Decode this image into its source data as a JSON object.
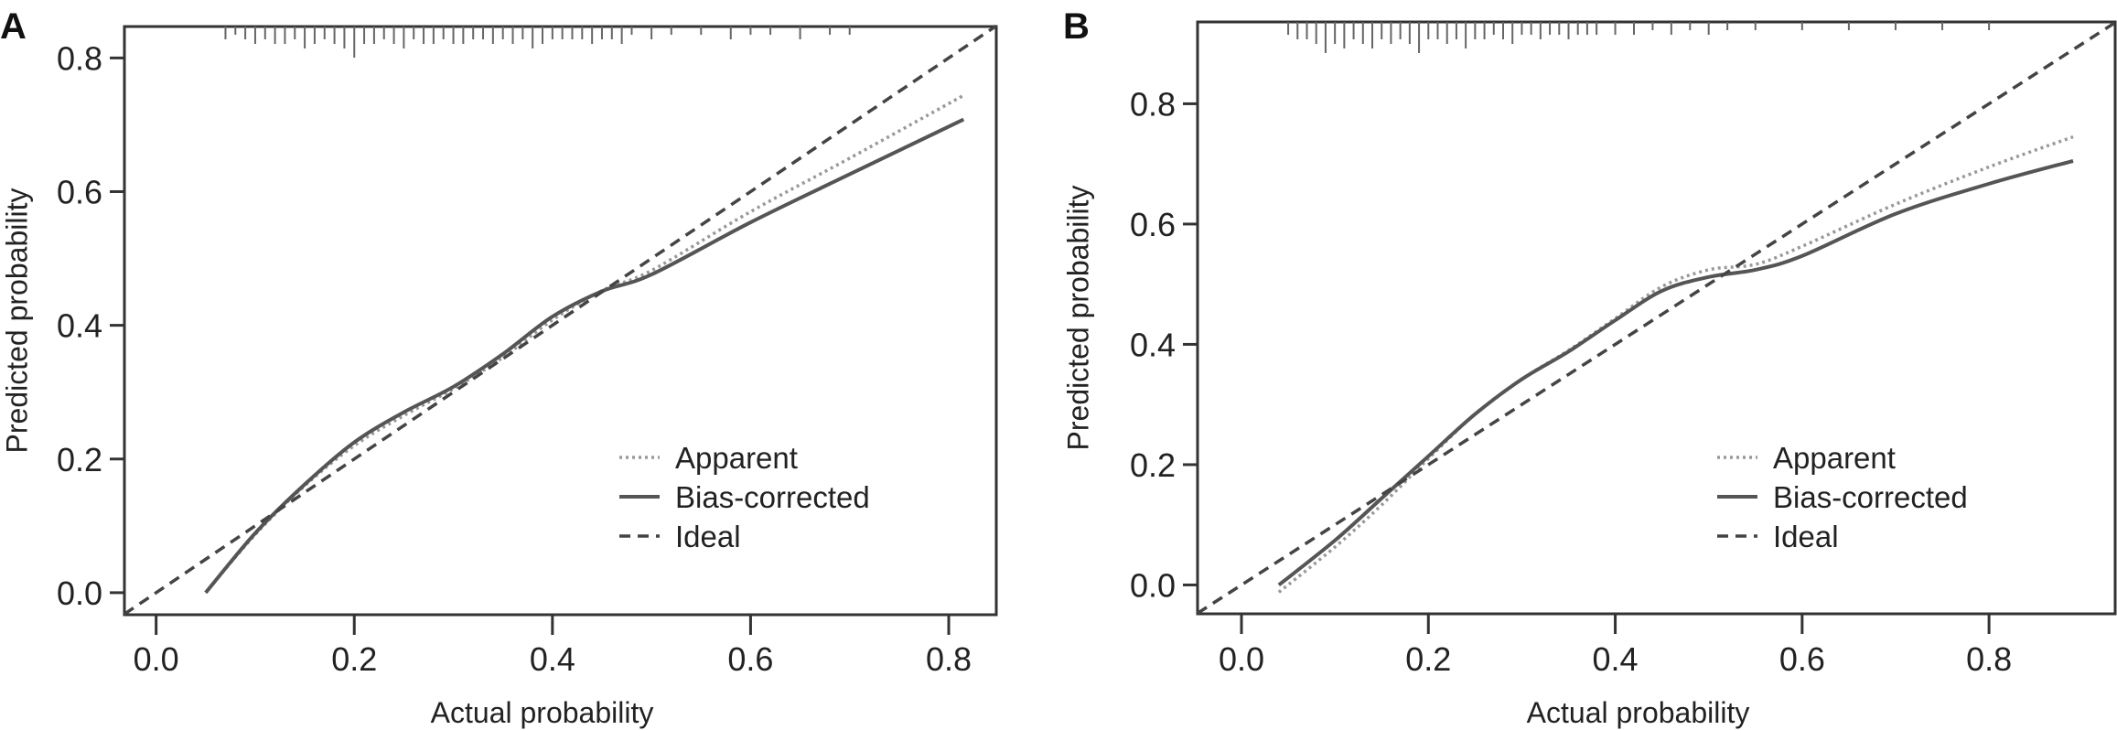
{
  "chart_data": [
    {
      "type": "line",
      "panel_label": "A",
      "xlabel": "Actual probability",
      "ylabel": "Predicted probability",
      "xlim": [
        -0.032,
        0.848
      ],
      "ylim": [
        -0.033,
        0.847
      ],
      "xticks": [
        "0.0",
        "0.2",
        "0.4",
        "0.6",
        "0.8"
      ],
      "yticks": [
        "0.0",
        "0.2",
        "0.4",
        "0.6",
        "0.8"
      ],
      "grid": false,
      "legend_position": "bottom-right",
      "series": [
        {
          "name": "Apparent",
          "style": "dotted",
          "color": "#999999",
          "x": [
            0.05,
            0.1,
            0.15,
            0.2,
            0.25,
            0.3,
            0.35,
            0.4,
            0.45,
            0.5,
            0.6,
            0.7,
            0.815
          ],
          "y": [
            0.0,
            0.087,
            0.16,
            0.22,
            0.265,
            0.305,
            0.352,
            0.408,
            0.452,
            0.482,
            0.57,
            0.65,
            0.744
          ]
        },
        {
          "name": "Bias-corrected",
          "style": "solid",
          "color": "#555555",
          "x": [
            0.05,
            0.1,
            0.15,
            0.2,
            0.25,
            0.3,
            0.35,
            0.4,
            0.45,
            0.5,
            0.6,
            0.7,
            0.815
          ],
          "y": [
            0.0,
            0.089,
            0.162,
            0.225,
            0.27,
            0.308,
            0.357,
            0.413,
            0.451,
            0.476,
            0.554,
            0.626,
            0.708
          ]
        },
        {
          "name": "Ideal",
          "style": "dashed",
          "color": "#444444",
          "x": [
            -0.032,
            0.848
          ],
          "y": [
            -0.032,
            0.848
          ]
        }
      ],
      "rug": [
        0.07,
        0.08,
        0.09,
        0.1,
        0.11,
        0.12,
        0.13,
        0.14,
        0.15,
        0.16,
        0.17,
        0.18,
        0.19,
        0.2,
        0.21,
        0.22,
        0.23,
        0.24,
        0.25,
        0.26,
        0.27,
        0.28,
        0.29,
        0.3,
        0.31,
        0.32,
        0.33,
        0.34,
        0.35,
        0.36,
        0.37,
        0.38,
        0.39,
        0.4,
        0.41,
        0.42,
        0.43,
        0.44,
        0.45,
        0.46,
        0.47,
        0.48,
        0.5,
        0.52,
        0.55,
        0.58,
        0.6,
        0.62,
        0.65,
        0.68,
        0.7
      ],
      "rug_counts": [
        2,
        1,
        2,
        3,
        2,
        3,
        3,
        2,
        4,
        3,
        2,
        3,
        4,
        6,
        3,
        3,
        2,
        3,
        4,
        2,
        3,
        3,
        2,
        3,
        3,
        2,
        2,
        3,
        2,
        3,
        2,
        4,
        3,
        2,
        2,
        2,
        2,
        3,
        2,
        2,
        3,
        1,
        2,
        1,
        1,
        2,
        1,
        1,
        2,
        1,
        1
      ]
    },
    {
      "type": "line",
      "panel_label": "B",
      "xlabel": "Actual probability",
      "ylabel": "Predicted probability",
      "xlim": [
        -0.047,
        0.935
      ],
      "ylim": [
        -0.048,
        0.936
      ],
      "xticks": [
        "0.0",
        "0.2",
        "0.4",
        "0.6",
        "0.8"
      ],
      "yticks": [
        "0.0",
        "0.2",
        "0.4",
        "0.6",
        "0.8"
      ],
      "grid": false,
      "legend_position": "bottom-right",
      "series": [
        {
          "name": "Apparent",
          "style": "dotted",
          "color": "#999999",
          "x": [
            0.04,
            0.1,
            0.15,
            0.2,
            0.25,
            0.3,
            0.35,
            0.4,
            0.45,
            0.5,
            0.55,
            0.6,
            0.7,
            0.8,
            0.89
          ],
          "y": [
            -0.012,
            0.063,
            0.133,
            0.21,
            0.284,
            0.342,
            0.39,
            0.443,
            0.496,
            0.524,
            0.533,
            0.563,
            0.633,
            0.695,
            0.745
          ]
        },
        {
          "name": "Bias-corrected",
          "style": "solid",
          "color": "#555555",
          "x": [
            0.04,
            0.1,
            0.15,
            0.2,
            0.25,
            0.3,
            0.35,
            0.4,
            0.45,
            0.5,
            0.55,
            0.6,
            0.7,
            0.8,
            0.89
          ],
          "y": [
            0.0,
            0.074,
            0.144,
            0.214,
            0.284,
            0.342,
            0.388,
            0.44,
            0.489,
            0.512,
            0.524,
            0.547,
            0.617,
            0.667,
            0.705
          ]
        },
        {
          "name": "Ideal",
          "style": "dashed",
          "color": "#444444",
          "x": [
            -0.047,
            0.935
          ],
          "y": [
            -0.047,
            0.935
          ]
        }
      ],
      "rug": [
        0.05,
        0.06,
        0.07,
        0.08,
        0.09,
        0.1,
        0.11,
        0.12,
        0.13,
        0.14,
        0.15,
        0.16,
        0.17,
        0.18,
        0.19,
        0.2,
        0.21,
        0.22,
        0.23,
        0.24,
        0.25,
        0.26,
        0.27,
        0.28,
        0.29,
        0.3,
        0.31,
        0.32,
        0.33,
        0.34,
        0.35,
        0.36,
        0.37,
        0.38,
        0.4,
        0.42,
        0.44,
        0.46,
        0.48,
        0.5,
        0.52,
        0.55,
        0.6,
        0.65,
        0.7,
        0.75,
        0.8
      ],
      "rug_counts": [
        2,
        3,
        3,
        4,
        6,
        4,
        5,
        3,
        4,
        5,
        3,
        4,
        3,
        4,
        6,
        3,
        3,
        4,
        3,
        5,
        3,
        3,
        2,
        3,
        4,
        2,
        2,
        3,
        2,
        2,
        3,
        2,
        2,
        2,
        2,
        2,
        1,
        2,
        1,
        2,
        1,
        1,
        1,
        1,
        1,
        1,
        1
      ]
    }
  ]
}
